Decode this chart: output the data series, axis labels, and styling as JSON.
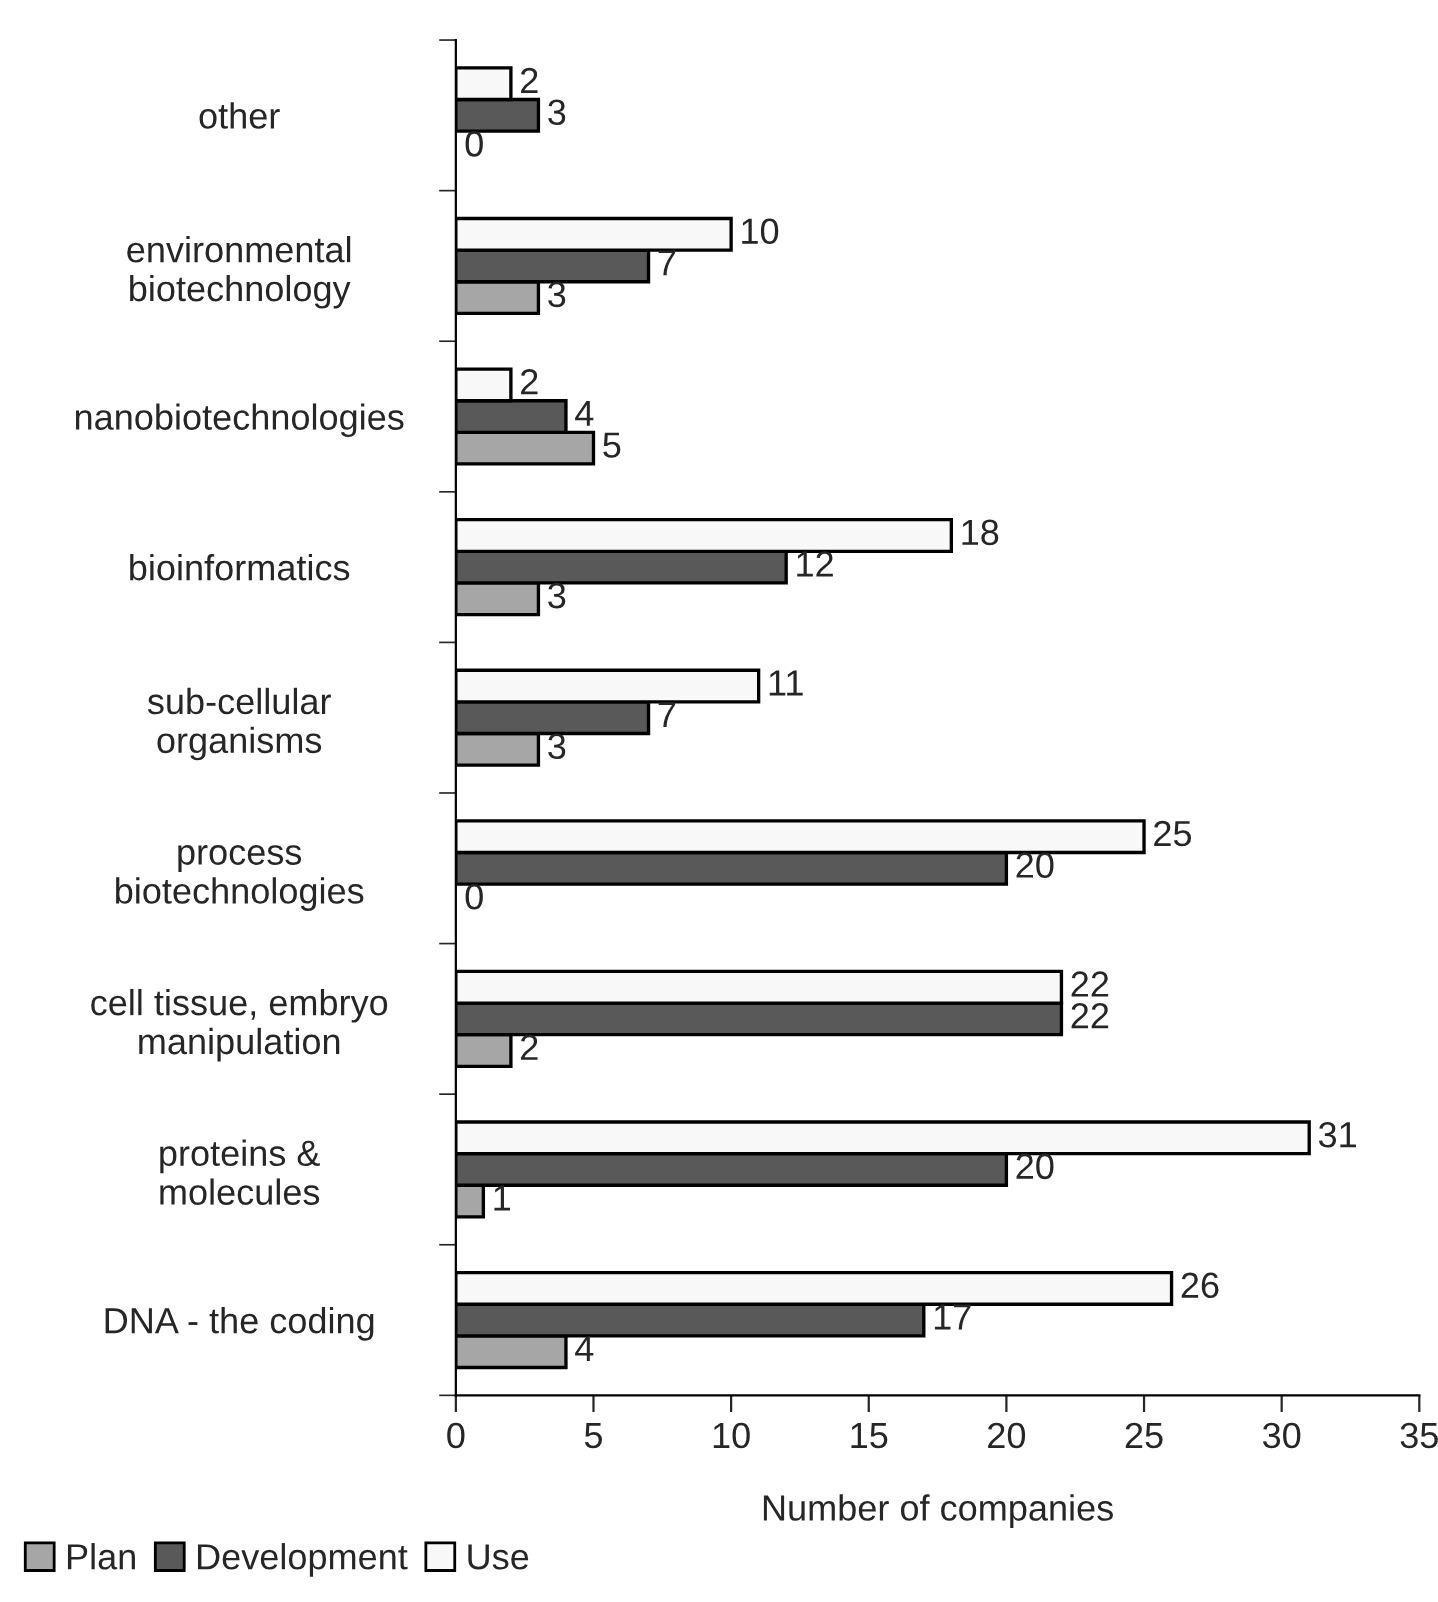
{
  "chart_data": {
    "type": "bar",
    "orientation": "horizontal",
    "xlabel": "Number of companies",
    "categories": [
      "other",
      "environmental\nbiotechnology",
      "nanobiotechnologies",
      "bioinformatics",
      "sub-cellular\norganisms",
      "process\nbiotechnologies",
      "cell tissue, embryo\nmanipulation",
      "proteins &\nmolecules",
      "DNA - the coding"
    ],
    "series": [
      {
        "name": "Plan",
        "color": "#a6a6a6",
        "values": [
          0,
          3,
          5,
          3,
          3,
          0,
          2,
          1,
          4
        ]
      },
      {
        "name": "Development",
        "color": "#595959",
        "values": [
          3,
          7,
          4,
          12,
          7,
          20,
          22,
          20,
          17
        ]
      },
      {
        "name": "Use",
        "color": "#f8f8f8",
        "values": [
          2,
          10,
          2,
          18,
          11,
          25,
          22,
          31,
          26
        ]
      }
    ],
    "xlim": [
      0,
      35
    ],
    "xticks": [
      0,
      5,
      10,
      15,
      20,
      25,
      30,
      35
    ],
    "data_labels": true,
    "grid": false,
    "legend": "bottom left"
  }
}
